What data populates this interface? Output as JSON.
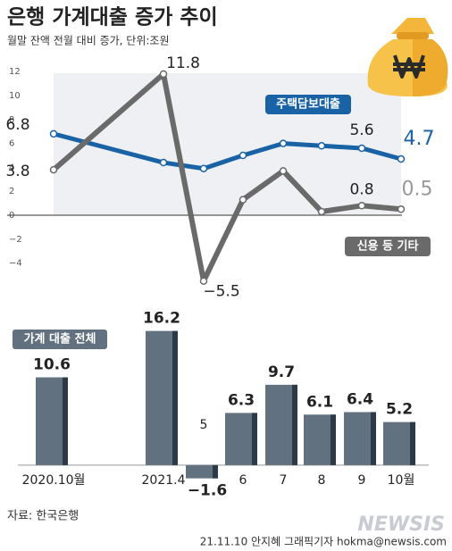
{
  "chart_data": [
    {
      "type": "line",
      "title": "은행 가계대출 증가 추이",
      "subtitle": "월말 잔액 전월 대비 증가, 단위:조원",
      "series": [
        {
          "name": "주택담보대출",
          "color": "#1a62a6",
          "values": [
            6.8,
            4.4,
            3.9,
            5.0,
            6.0,
            5.8,
            5.6,
            4.7
          ],
          "value_labels": [
            "6.8",
            null,
            null,
            null,
            null,
            null,
            "5.6",
            "4.7"
          ]
        },
        {
          "name": "신용 등 기타",
          "color": "#6a6a6a",
          "values": [
            3.8,
            11.8,
            -5.5,
            1.3,
            3.7,
            0.3,
            0.8,
            0.5
          ],
          "value_labels": [
            "3.8",
            "11.8",
            "−5.5",
            null,
            null,
            null,
            "0.8",
            "0.5"
          ]
        }
      ],
      "ylim": [
        -6,
        13
      ],
      "yticks": [
        12,
        10,
        8,
        6,
        4,
        2,
        0,
        {
          "value": -2,
          "label": "−2"
        },
        {
          "value": -4,
          "label": "−4"
        }
      ],
      "grid": false
    },
    {
      "type": "bar",
      "title": "가계 대출 전체",
      "categories": [
        "2020.10월",
        "2021.4",
        "5",
        "6",
        "7",
        "8",
        "9",
        "10월"
      ],
      "values": [
        10.6,
        16.2,
        -1.6,
        6.3,
        9.7,
        6.1,
        6.4,
        5.2
      ],
      "value_labels": [
        "10.6",
        "16.2",
        "−1.6",
        "6.3",
        "9.7",
        "6.1",
        "6.4",
        "5.2"
      ],
      "color": "#62717f",
      "ylim": [
        -2.5,
        19.5
      ]
    }
  ],
  "source": "자료:  한국은행",
  "credit": "21.11.10 안지혜 그래픽기자 hokma@newsis.com",
  "watermark": "NEWSIS"
}
